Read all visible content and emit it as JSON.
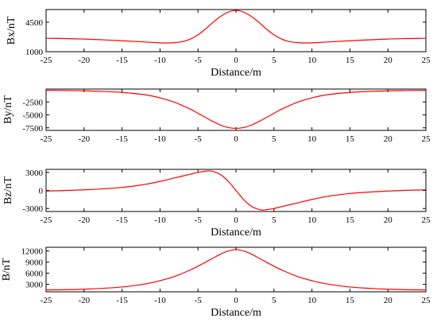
{
  "chart_data": [
    {
      "type": "line",
      "xlabel": "Distance/m",
      "ylabel": "Bx/nT",
      "xlim": [
        -25,
        25
      ],
      "ylim": [
        1000,
        6000
      ],
      "xticks": [
        -25,
        -20,
        -15,
        -10,
        -5,
        0,
        5,
        10,
        15,
        20,
        25
      ],
      "yticks": [
        1000,
        4500
      ],
      "color": "#ff0000",
      "x": [
        -25,
        -20,
        -15,
        -12,
        -10,
        -8.5,
        -7,
        -6,
        -5,
        -4,
        -3,
        -2,
        -1,
        0,
        1,
        2,
        3,
        4,
        5,
        6,
        7,
        8.5,
        10,
        12,
        15,
        20,
        25
      ],
      "values": [
        2600,
        2500,
        2300,
        2150,
        2050,
        2050,
        2200,
        2500,
        3000,
        3700,
        4500,
        5200,
        5700,
        5900,
        5700,
        5200,
        4500,
        3700,
        3000,
        2500,
        2200,
        2050,
        2050,
        2150,
        2300,
        2500,
        2600
      ]
    },
    {
      "type": "line",
      "xlabel": "",
      "ylabel": "By/nT",
      "xlim": [
        -25,
        25
      ],
      "ylim": [
        -8000,
        0
      ],
      "xticks": [
        -25,
        -20,
        -15,
        -10,
        -5,
        0,
        5,
        10,
        15,
        20,
        25
      ],
      "yticks": [
        -7500,
        -5000,
        -2500
      ],
      "color": "#ff0000",
      "x": [
        -25,
        -20,
        -15,
        -12,
        -10,
        -8,
        -6,
        -5,
        -4,
        -3,
        -2,
        -1,
        0,
        1,
        2,
        3,
        4,
        5,
        6,
        8,
        10,
        12,
        15,
        20,
        25
      ],
      "values": [
        -250,
        -350,
        -650,
        -1100,
        -1700,
        -2600,
        -3900,
        -4700,
        -5500,
        -6300,
        -7000,
        -7450,
        -7600,
        -7450,
        -7000,
        -6300,
        -5500,
        -4700,
        -3900,
        -2600,
        -1700,
        -1100,
        -650,
        -350,
        -250
      ]
    },
    {
      "type": "line",
      "xlabel": "Distance/m",
      "ylabel": "Bz/nT",
      "xlim": [
        -25,
        25
      ],
      "ylim": [
        -3500,
        3500
      ],
      "xticks": [
        -25,
        -20,
        -15,
        -10,
        -5,
        0,
        5,
        10,
        15,
        20,
        25
      ],
      "yticks": [
        -3000,
        0,
        3000
      ],
      "color": "#ff0000",
      "x": [
        -25,
        -20,
        -15,
        -12,
        -10,
        -8,
        -6,
        -5,
        -4,
        -3.5,
        -3,
        -2,
        -1,
        0,
        1,
        2,
        3,
        3.5,
        4,
        5,
        6,
        8,
        10,
        12,
        15,
        20,
        25
      ],
      "values": [
        -100,
        100,
        500,
        1000,
        1500,
        2100,
        2700,
        3000,
        3200,
        3250,
        3150,
        2600,
        1500,
        0,
        -1500,
        -2600,
        -3150,
        -3250,
        -3200,
        -3000,
        -2700,
        -2100,
        -1500,
        -1000,
        -500,
        -100,
        100
      ]
    },
    {
      "type": "line",
      "xlabel": "Distance/m",
      "ylabel": "B/nT",
      "xlim": [
        -25,
        25
      ],
      "ylim": [
        1000,
        13000
      ],
      "xticks": [
        -25,
        -20,
        -15,
        -10,
        -5,
        0,
        5,
        10,
        15,
        20,
        25
      ],
      "yticks": [
        3000,
        6000,
        9000,
        12000
      ],
      "color": "#ff0000",
      "x": [
        -25,
        -20,
        -15,
        -12,
        -10,
        -8,
        -6,
        -5,
        -4,
        -3,
        -2,
        -1,
        0,
        1,
        2,
        3,
        4,
        5,
        6,
        8,
        10,
        12,
        15,
        20,
        25
      ],
      "values": [
        1500,
        1700,
        2300,
        3100,
        4000,
        5200,
        6900,
        7900,
        9000,
        10100,
        11200,
        12000,
        12400,
        12000,
        11200,
        10100,
        9000,
        7900,
        6900,
        5200,
        4000,
        3100,
        2300,
        1700,
        1500
      ]
    }
  ]
}
